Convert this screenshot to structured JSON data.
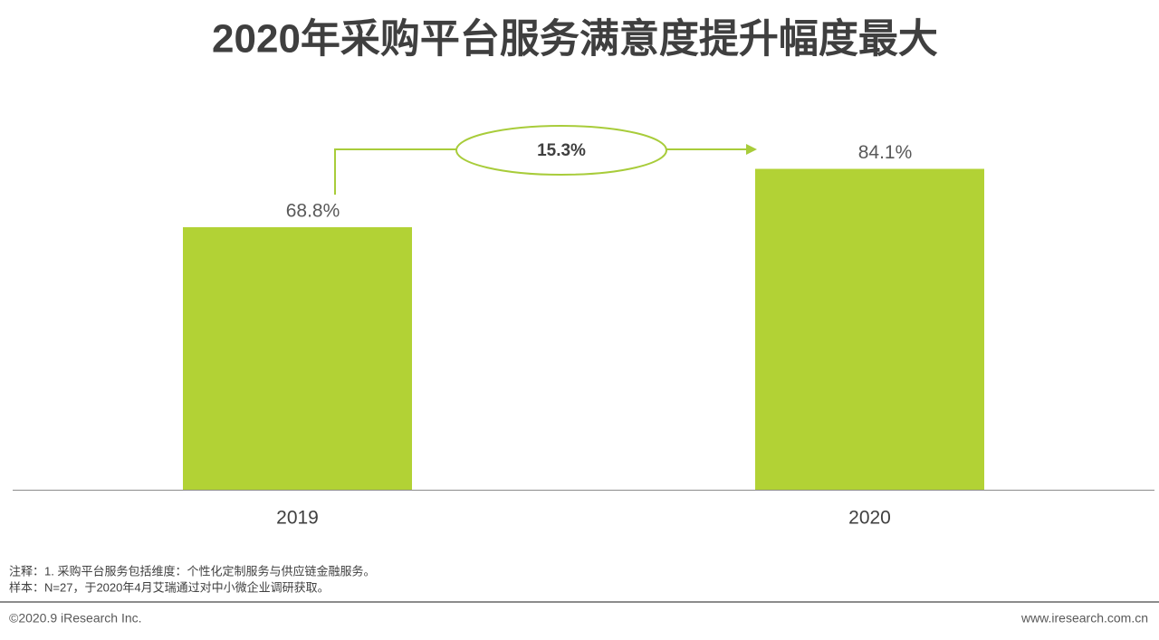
{
  "chart_data": {
    "type": "bar",
    "title": "2020年采购平台服务满意度提升幅度最大",
    "categories": [
      "2019",
      "2020"
    ],
    "values": [
      68.8,
      84.1
    ],
    "value_labels": [
      "68.8%",
      "84.1%"
    ],
    "color": "#b2d235",
    "annotation": "15.3%"
  },
  "notes": [
    "注释：1. 采购平台服务包括维度：个性化定制服务与供应链金融服务。",
    "样本：N=27，于2020年4月艾瑞通过对中小微企业调研获取。"
  ],
  "footer": {
    "left": "©2020.9 iResearch Inc.",
    "right": "www.iresearch.com.cn"
  }
}
